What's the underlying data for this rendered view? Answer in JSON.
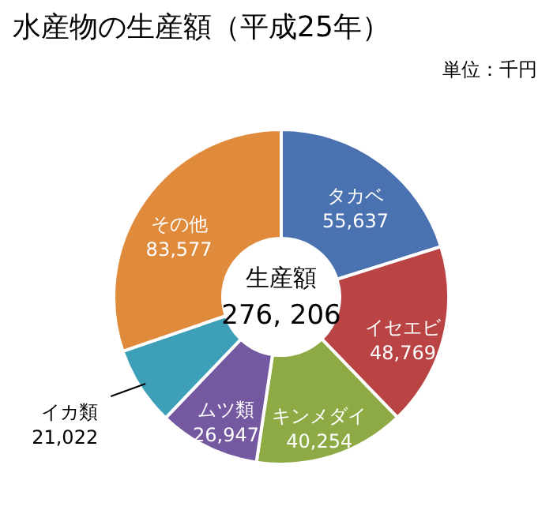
{
  "chart_data": {
    "type": "donut",
    "title": "水産物の生産額（平成25年）",
    "subtitle": "単位：千円",
    "categories": [
      "タカベ",
      "イセエビ",
      "キンメダイ",
      "ムツ類",
      "イカ類",
      "その他"
    ],
    "values": [
      55637,
      48769,
      40254,
      26947,
      21022,
      83577
    ],
    "colors": [
      "#4a72b0",
      "#b94443",
      "#8eaa45",
      "#7559a0",
      "#3ea0b8",
      "#e08a3c"
    ],
    "value_labels": [
      "55,637",
      "48,769",
      "40,254",
      "26,947",
      "21,022",
      "83,577"
    ],
    "legend": false,
    "annotations": [
      "生産額",
      "276, 206"
    ]
  }
}
